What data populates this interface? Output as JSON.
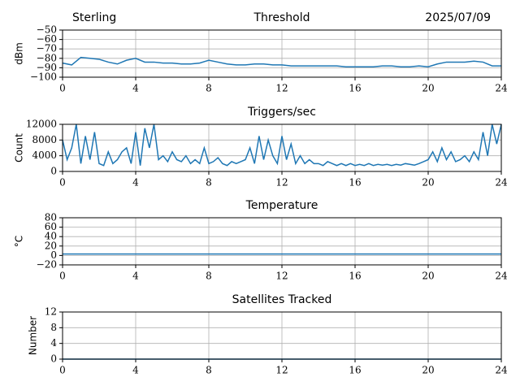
{
  "chart_data": [
    {
      "type": "line",
      "title": "Threshold",
      "station": "Sterling",
      "date": "2025/07/09",
      "ylabel": "dBm",
      "color": "#1f77b4",
      "grid": true,
      "xlim": [
        0,
        24
      ],
      "xticks": [
        0,
        4,
        8,
        12,
        16,
        20,
        24
      ],
      "ylim": [
        -100,
        -50
      ],
      "yticks": [
        {
          "value": -50,
          "label": "−50"
        },
        {
          "value": -60,
          "label": "−60"
        },
        {
          "value": -70,
          "label": "−70"
        },
        {
          "value": -80,
          "label": "−80"
        },
        {
          "value": -90,
          "label": "−90"
        },
        {
          "value": -100,
          "label": "−100"
        }
      ],
      "x": [
        0,
        0.5,
        1,
        1.5,
        2,
        2.5,
        3,
        3.5,
        4,
        4.5,
        5,
        5.5,
        6,
        6.5,
        7,
        7.5,
        8,
        8.5,
        9,
        9.5,
        10,
        10.5,
        11,
        11.5,
        12,
        12.5,
        13,
        13.5,
        14,
        14.5,
        15,
        15.5,
        16,
        16.5,
        17,
        17.5,
        18,
        18.5,
        19,
        19.5,
        20,
        20.5,
        21,
        21.5,
        22,
        22.5,
        23,
        23.5,
        24
      ],
      "values": [
        -85,
        -87,
        -79,
        -80,
        -81,
        -84,
        -86,
        -82,
        -80,
        -84,
        -84,
        -85,
        -85,
        -86,
        -86,
        -85,
        -82,
        -84,
        -86,
        -87,
        -87,
        -86,
        -86,
        -87,
        -87,
        -88,
        -88,
        -88,
        -88,
        -88,
        -88,
        -89,
        -89,
        -89,
        -89,
        -88,
        -88,
        -89,
        -89,
        -88,
        -89,
        -86,
        -84,
        -84,
        -84,
        -83,
        -84,
        -88,
        -88
      ]
    },
    {
      "type": "line",
      "title": "Triggers/sec",
      "ylabel": "Count",
      "color": "#1f77b4",
      "grid": true,
      "xlim": [
        0,
        24
      ],
      "xticks": [
        0,
        4,
        8,
        12,
        16,
        20,
        24
      ],
      "ylim": [
        0,
        12000
      ],
      "yticks": [
        0,
        4000,
        8000,
        12000
      ],
      "x": [
        0,
        0.25,
        0.5,
        0.75,
        1,
        1.25,
        1.5,
        1.75,
        2,
        2.25,
        2.5,
        2.75,
        3,
        3.25,
        3.5,
        3.75,
        4,
        4.25,
        4.5,
        4.75,
        5,
        5.25,
        5.5,
        5.75,
        6,
        6.25,
        6.5,
        6.75,
        7,
        7.25,
        7.5,
        7.75,
        8,
        8.25,
        8.5,
        8.75,
        9,
        9.25,
        9.5,
        9.75,
        10,
        10.25,
        10.5,
        10.75,
        11,
        11.25,
        11.5,
        11.75,
        12,
        12.25,
        12.5,
        12.75,
        13,
        13.25,
        13.5,
        13.75,
        14,
        14.25,
        14.5,
        14.75,
        15,
        15.25,
        15.5,
        15.75,
        16,
        16.25,
        16.5,
        16.75,
        17,
        17.25,
        17.5,
        17.75,
        18,
        18.25,
        18.5,
        18.75,
        19,
        19.25,
        19.5,
        19.75,
        20,
        20.25,
        20.5,
        20.75,
        21,
        21.25,
        21.5,
        21.75,
        22,
        22.25,
        22.5,
        22.75,
        23,
        23.25,
        23.5,
        23.75,
        24
      ],
      "values": [
        8000,
        3000,
        6000,
        12000,
        2000,
        9000,
        3000,
        10000,
        2000,
        1500,
        5000,
        2000,
        3000,
        5000,
        6000,
        2000,
        10000,
        1500,
        11000,
        6000,
        12000,
        3000,
        4000,
        2500,
        5000,
        3000,
        2500,
        4000,
        2000,
        3000,
        2000,
        6000,
        2000,
        2500,
        3500,
        2000,
        1500,
        2500,
        2000,
        2500,
        3000,
        6000,
        2000,
        9000,
        3000,
        8000,
        4000,
        2000,
        9000,
        3000,
        7000,
        2000,
        4000,
        2000,
        3000,
        2000,
        2000,
        1500,
        2500,
        2000,
        1500,
        2000,
        1500,
        2000,
        1500,
        1800,
        1500,
        2000,
        1500,
        1800,
        1600,
        1800,
        1500,
        1800,
        1600,
        2000,
        1800,
        1600,
        2000,
        2500,
        3000,
        5000,
        2500,
        6000,
        3000,
        5000,
        2500,
        3000,
        4000,
        2500,
        5000,
        3000,
        10000,
        4000,
        12000,
        7000,
        12000
      ]
    },
    {
      "type": "line",
      "title": "Temperature",
      "ylabel": "°C",
      "color": "#1f77b4",
      "grid": true,
      "xlim": [
        0,
        24
      ],
      "xticks": [
        0,
        4,
        8,
        12,
        16,
        20,
        24
      ],
      "ylim": [
        -20,
        80
      ],
      "yticks": [
        {
          "value": -20,
          "label": "−20"
        },
        0,
        20,
        40,
        60,
        80
      ],
      "x": [
        0,
        24
      ],
      "values": [
        3,
        3
      ]
    },
    {
      "type": "line",
      "title": "Satellites Tracked",
      "ylabel": "Number",
      "color": "#1f77b4",
      "grid": true,
      "xlim": [
        0,
        24
      ],
      "xticks": [
        0,
        4,
        8,
        12,
        16,
        20,
        24
      ],
      "ylim": [
        0,
        12
      ],
      "yticks": [
        0,
        4,
        8,
        12
      ],
      "x": [
        0,
        24
      ],
      "values": [
        0,
        0
      ]
    }
  ]
}
